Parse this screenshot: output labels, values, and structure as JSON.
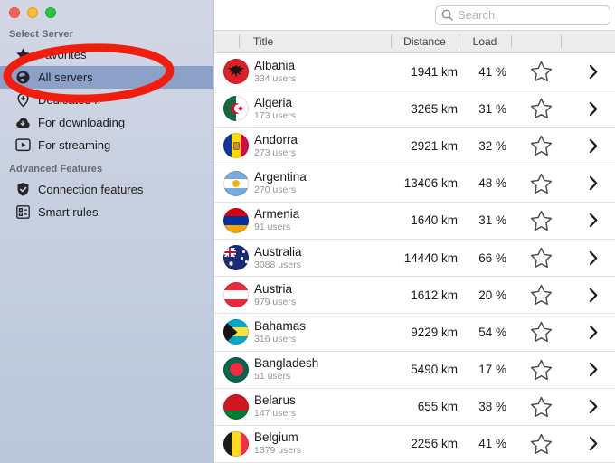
{
  "window": {
    "traffic_lights": [
      {
        "name": "close-button",
        "color": "#ff5f57"
      },
      {
        "name": "minimize-button",
        "color": "#febc2e"
      },
      {
        "name": "zoom-button",
        "color": "#28c840"
      }
    ]
  },
  "sidebar": {
    "selection_color": "#8ba1c7",
    "sections": [
      {
        "header": "Select Server",
        "items": [
          {
            "label": "Favorites",
            "icon": "star-icon",
            "selected": false
          },
          {
            "label": "All servers",
            "icon": "globe-icon",
            "selected": true
          },
          {
            "label": "Dedicated IP",
            "icon": "pin-icon",
            "selected": false
          },
          {
            "label": "For downloading",
            "icon": "cloud-download-icon",
            "selected": false
          },
          {
            "label": "For streaming",
            "icon": "play-screen-icon",
            "selected": false
          }
        ]
      },
      {
        "header": "Advanced Features",
        "items": [
          {
            "label": "Connection features",
            "icon": "shield-check-icon",
            "selected": false
          },
          {
            "label": "Smart rules",
            "icon": "smart-rules-icon",
            "selected": false
          }
        ]
      }
    ]
  },
  "annotation": {
    "shape": "ellipse",
    "color": "#f11d0d",
    "target": "All servers"
  },
  "toolbar": {
    "search_placeholder": "Search"
  },
  "table": {
    "columns": [
      {
        "key": "flag",
        "label": ""
      },
      {
        "key": "title",
        "label": "Title"
      },
      {
        "key": "distance",
        "label": "Distance"
      },
      {
        "key": "load",
        "label": "Load"
      },
      {
        "key": "favorite",
        "label": ""
      },
      {
        "key": "open",
        "label": ""
      }
    ],
    "rows": [
      {
        "title": "Albania",
        "users": "334 users",
        "distance": "1941 km",
        "load": "41 %",
        "flag": {
          "name": "albania-flag",
          "dir": "h",
          "bands": [
            [
              "#dd1f26",
              100
            ]
          ],
          "emblems": [
            {
              "type": "eagle",
              "color": "#161616"
            }
          ]
        }
      },
      {
        "title": "Algeria",
        "users": "173 users",
        "distance": "3265 km",
        "load": "31 %",
        "flag": {
          "name": "algeria-flag",
          "dir": "v",
          "bands": [
            [
              "#0f6b3e",
              50
            ],
            [
              "#ffffff",
              100
            ]
          ],
          "emblems": [
            {
              "type": "crescent",
              "color": "#d21034"
            }
          ]
        }
      },
      {
        "title": "Andorra",
        "users": "273 users",
        "distance": "2921 km",
        "load": "32 %",
        "flag": {
          "name": "andorra-flag",
          "dir": "v",
          "bands": [
            [
              "#1036a2",
              33
            ],
            [
              "#fedf00",
              67
            ],
            [
              "#d0103a",
              100
            ]
          ],
          "emblems": [
            {
              "type": "crest",
              "color": "#c98b3d"
            }
          ]
        }
      },
      {
        "title": "Argentina",
        "users": "270 users",
        "distance": "13406 km",
        "load": "48 %",
        "flag": {
          "name": "argentina-flag",
          "dir": "h",
          "bands": [
            [
              "#74acdf",
              33
            ],
            [
              "#ffffff",
              67
            ],
            [
              "#74acdf",
              100
            ]
          ],
          "emblems": [
            {
              "type": "sun",
              "color": "#f6b40e"
            }
          ]
        }
      },
      {
        "title": "Armenia",
        "users": "91 users",
        "distance": "1640 km",
        "load": "31 %",
        "flag": {
          "name": "armenia-flag",
          "dir": "h",
          "bands": [
            [
              "#d90012",
              33
            ],
            [
              "#0033a0",
              67
            ],
            [
              "#f2a800",
              100
            ]
          ],
          "emblems": []
        }
      },
      {
        "title": "Australia",
        "users": "3088 users",
        "distance": "14440 km",
        "load": "66 %",
        "flag": {
          "name": "australia-flag",
          "dir": "h",
          "bands": [
            [
              "#1a2b7a",
              100
            ]
          ],
          "emblems": [
            {
              "type": "canton-uk",
              "color": "#1a2b7a"
            },
            {
              "type": "stars",
              "color": "#ffffff"
            }
          ]
        }
      },
      {
        "title": "Austria",
        "users": "979 users",
        "distance": "1612 km",
        "load": "20 %",
        "flag": {
          "name": "austria-flag",
          "dir": "h",
          "bands": [
            [
              "#ed2939",
              33
            ],
            [
              "#ffffff",
              67
            ],
            [
              "#ed2939",
              100
            ]
          ],
          "emblems": []
        }
      },
      {
        "title": "Bahamas",
        "users": "316 users",
        "distance": "9229 km",
        "load": "54 %",
        "flag": {
          "name": "bahamas-flag",
          "dir": "h",
          "bands": [
            [
              "#00abc9",
              33
            ],
            [
              "#fae042",
              67
            ],
            [
              "#00abc9",
              100
            ]
          ],
          "emblems": [
            {
              "type": "tri-left",
              "color": "#151515"
            }
          ]
        }
      },
      {
        "title": "Bangladesh",
        "users": "51 users",
        "distance": "5490 km",
        "load": "17 %",
        "flag": {
          "name": "bangladesh-flag",
          "dir": "h",
          "bands": [
            [
              "#03664d",
              100
            ]
          ],
          "emblems": [
            {
              "type": "disc",
              "color": "#f42a41",
              "x": 7,
              "y": 6.5,
              "size": 15
            }
          ]
        }
      },
      {
        "title": "Belarus",
        "users": "147 users",
        "distance": "655 km",
        "load": "38 %",
        "flag": {
          "name": "belarus-flag",
          "dir": "h",
          "bands": [
            [
              "#ce1720",
              64
            ],
            [
              "#007c30",
              100
            ]
          ],
          "emblems": []
        }
      },
      {
        "title": "Belgium",
        "users": "1379 users",
        "distance": "2256 km",
        "load": "41 %",
        "flag": {
          "name": "belgium-flag",
          "dir": "v",
          "bands": [
            [
              "#1b1b1b",
              33
            ],
            [
              "#fdda24",
              67
            ],
            [
              "#ef3340",
              100
            ]
          ],
          "emblems": []
        }
      }
    ]
  }
}
